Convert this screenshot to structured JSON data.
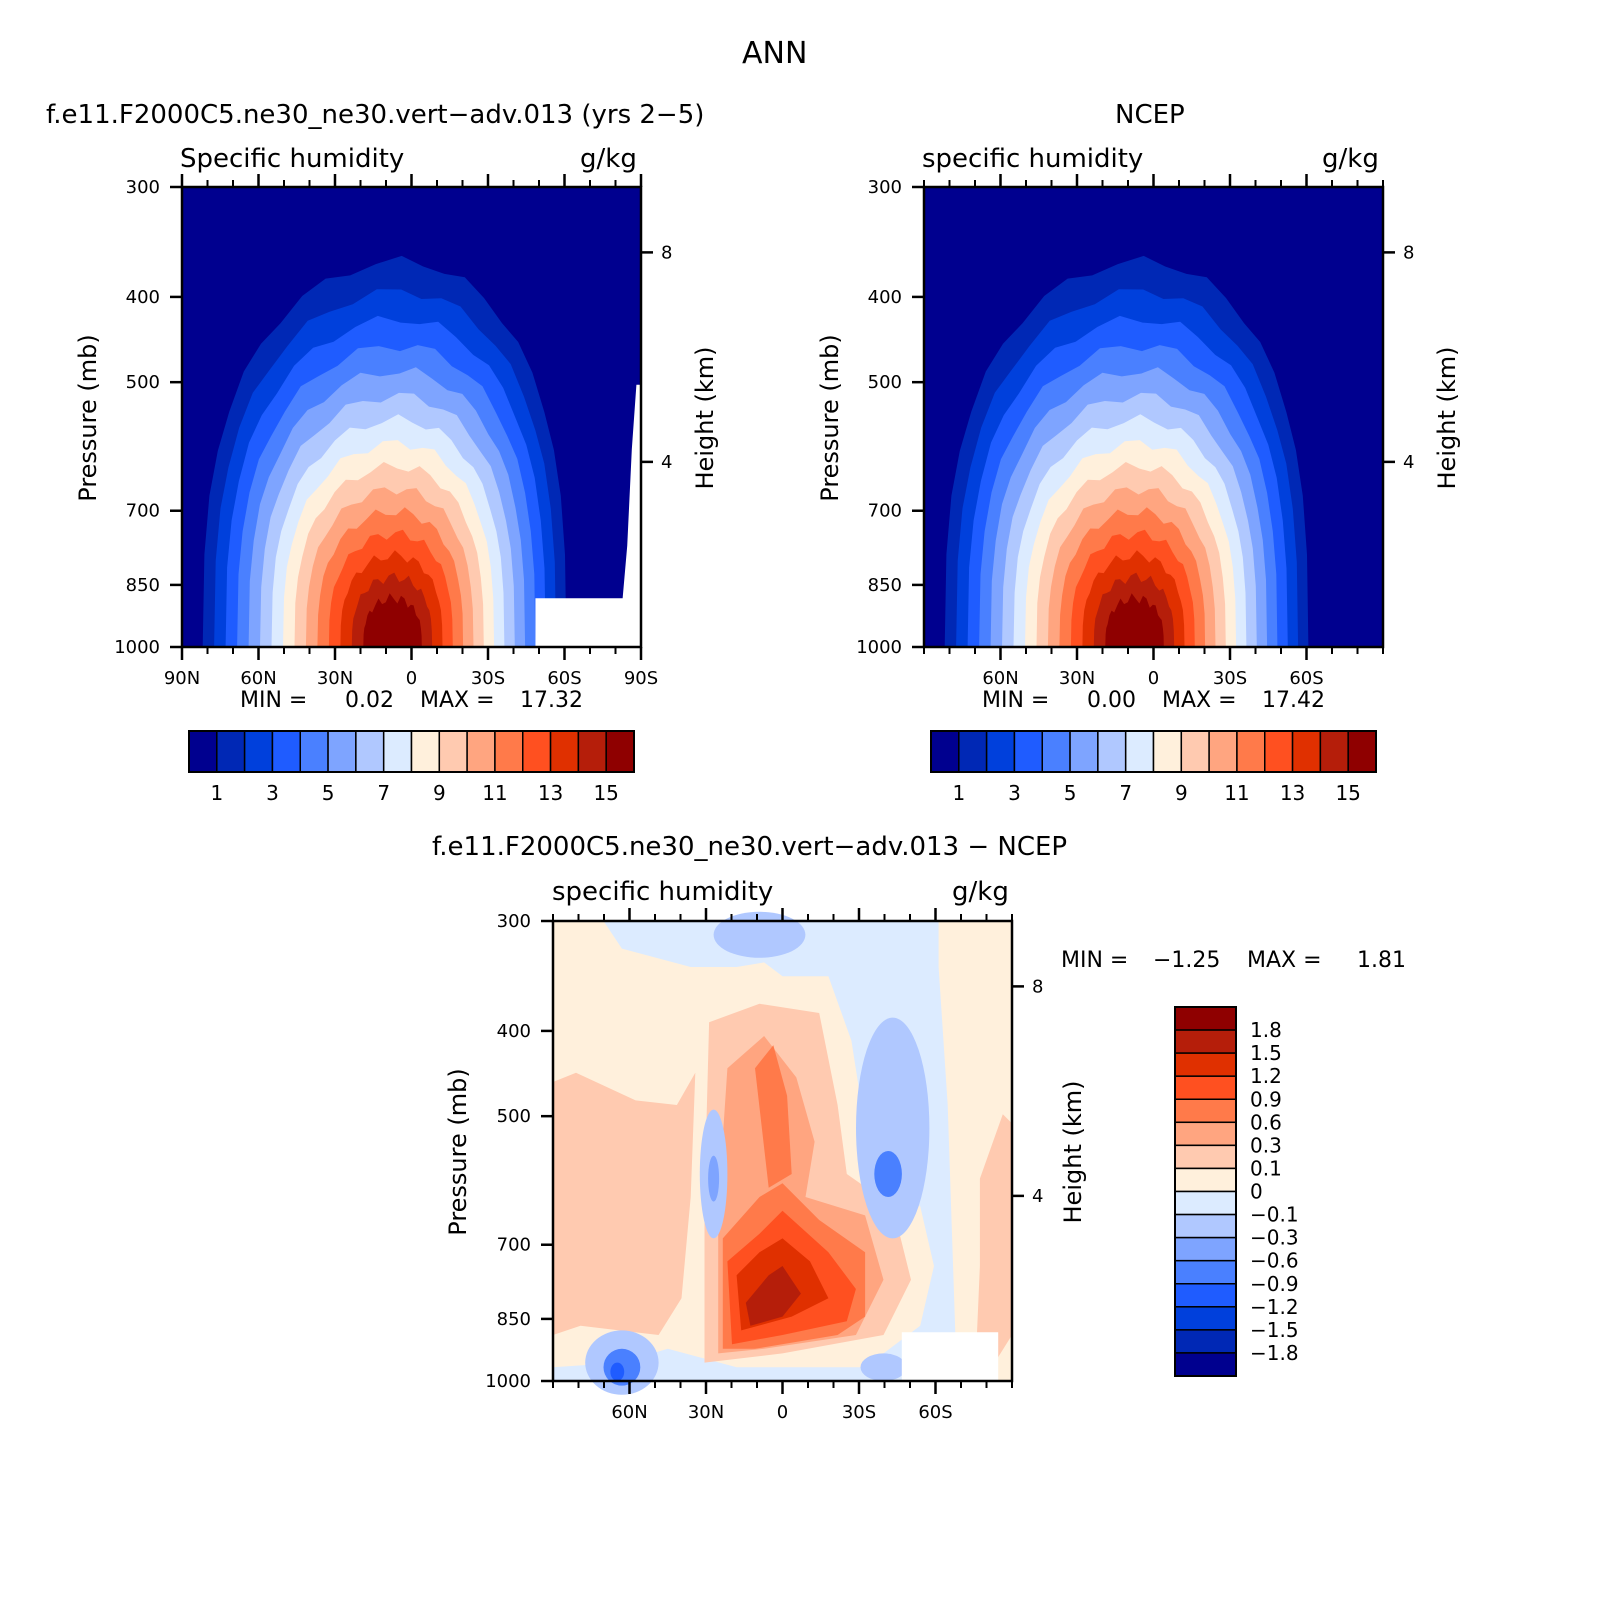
{
  "figure": {
    "title": "ANN"
  },
  "chart_data": [
    {
      "id": "model",
      "type": "heatmap",
      "title": "f.e11.F2000C5.ne30_ne30.vert−adv.013 (yrs 2−5)",
      "subtitle_left": "Specific humidity",
      "subtitle_right": "g/kg",
      "xlabel": "",
      "ylabel": "Pressure (mb)",
      "y2label": "Height (km)",
      "x_ticks": [
        "90N",
        "60N",
        "30N",
        "0",
        "30S",
        "60S",
        "90S"
      ],
      "y_ticks": [
        "300",
        "400",
        "500",
        "700",
        "850",
        "1000"
      ],
      "y2_ticks": [
        "8",
        "4"
      ],
      "min_label": "MIN =",
      "min": "0.02",
      "max_label": "MAX =",
      "max": "17.32",
      "levels": [
        1,
        2,
        3,
        4,
        5,
        6,
        7,
        8,
        9,
        10,
        11,
        12,
        13,
        14,
        15
      ],
      "colorbar_labels": [
        "1",
        "3",
        "5",
        "7",
        "9",
        "11",
        "13",
        "15"
      ],
      "colors": [
        "#00008f",
        "#0028b5",
        "#0040dc",
        "#1f5cff",
        "#4a80ff",
        "#7ea4ff",
        "#b0c8ff",
        "#dcebff",
        "#fff0dc",
        "#ffcab0",
        "#ffa580",
        "#ff7a4a",
        "#ff5020",
        "#e03000",
        "#b51e0a",
        "#8f0000"
      ],
      "peak": 17.32,
      "ylim_mb": [
        1000,
        300
      ],
      "xlim": [
        "90N",
        "90S"
      ]
    },
    {
      "id": "ncep",
      "type": "heatmap",
      "title": "NCEP",
      "subtitle_left": "specific humidity",
      "subtitle_right": "g/kg",
      "xlabel": "",
      "ylabel": "Pressure (mb)",
      "y2label": "Height (km)",
      "x_ticks": [
        "60N",
        "30N",
        "0",
        "30S",
        "60S"
      ],
      "y_ticks": [
        "300",
        "400",
        "500",
        "700",
        "850",
        "1000"
      ],
      "y2_ticks": [
        "8",
        "4"
      ],
      "min_label": "MIN =",
      "min": "0.00",
      "max_label": "MAX =",
      "max": "17.42",
      "levels": [
        1,
        2,
        3,
        4,
        5,
        6,
        7,
        8,
        9,
        10,
        11,
        12,
        13,
        14,
        15
      ],
      "colorbar_labels": [
        "1",
        "3",
        "5",
        "7",
        "9",
        "11",
        "13",
        "15"
      ],
      "colors": [
        "#00008f",
        "#0028b5",
        "#0040dc",
        "#1f5cff",
        "#4a80ff",
        "#7ea4ff",
        "#b0c8ff",
        "#dcebff",
        "#fff0dc",
        "#ffcab0",
        "#ffa580",
        "#ff7a4a",
        "#ff5020",
        "#e03000",
        "#b51e0a",
        "#8f0000"
      ],
      "peak": 17.42,
      "ylim_mb": [
        1000,
        300
      ]
    },
    {
      "id": "diff",
      "type": "heatmap",
      "title": "f.e11.F2000C5.ne30_ne30.vert−adv.013 − NCEP",
      "subtitle_left": "specific humidity",
      "subtitle_right": "g/kg",
      "xlabel": "",
      "ylabel": "Pressure (mb)",
      "y2label": "Height (km)",
      "x_ticks": [
        "60N",
        "30N",
        "0",
        "30S",
        "60S"
      ],
      "y_ticks": [
        "300",
        "400",
        "500",
        "700",
        "850",
        "1000"
      ],
      "y2_ticks": [
        "8",
        "4"
      ],
      "min_label": "MIN =",
      "min": "−1.25",
      "max_label": "MAX =",
      "max": "1.81",
      "levels": [
        -1.8,
        -1.5,
        -1.2,
        -0.9,
        -0.6,
        -0.3,
        -0.1,
        0,
        0.1,
        0.3,
        0.6,
        0.9,
        1.2,
        1.5,
        1.8
      ],
      "colorbar_labels": [
        "1.8",
        "1.5",
        "1.2",
        "0.9",
        "0.6",
        "0.3",
        "0.1",
        "0",
        "−0.1",
        "−0.3",
        "−0.6",
        "−0.9",
        "−1.2",
        "−1.5",
        "−1.8"
      ],
      "colors": [
        "#00008f",
        "#0028b5",
        "#0040dc",
        "#1f5cff",
        "#4a80ff",
        "#7ea4ff",
        "#b0c8ff",
        "#dcebff",
        "#fff0dc",
        "#ffcab0",
        "#ffa580",
        "#ff7a4a",
        "#ff5020",
        "#e03000",
        "#b51e0a",
        "#8f0000"
      ],
      "ylim_mb": [
        1000,
        300
      ]
    }
  ]
}
